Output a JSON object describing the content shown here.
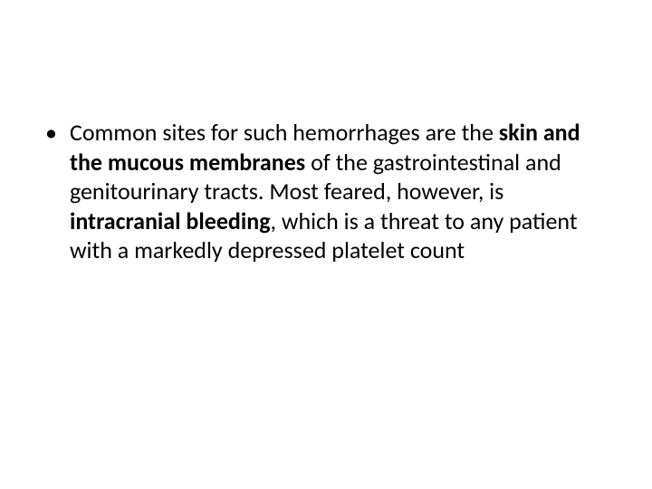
{
  "slide": {
    "bullet_marker": "•",
    "text_parts": {
      "part1": "Common sites for such hemorrhages are the ",
      "bold1": "skin and the mucous membranes ",
      "part2": "of the gastrointestinal and genitourinary tracts. Most feared, however, is ",
      "bold2": "intracranial bleeding",
      "part3": ", which is a threat to any patient with a markedly depressed platelet count"
    },
    "typography": {
      "font_family": "Calibri",
      "font_size_pt": 20,
      "text_color": "#000000",
      "background_color": "#ffffff"
    }
  }
}
